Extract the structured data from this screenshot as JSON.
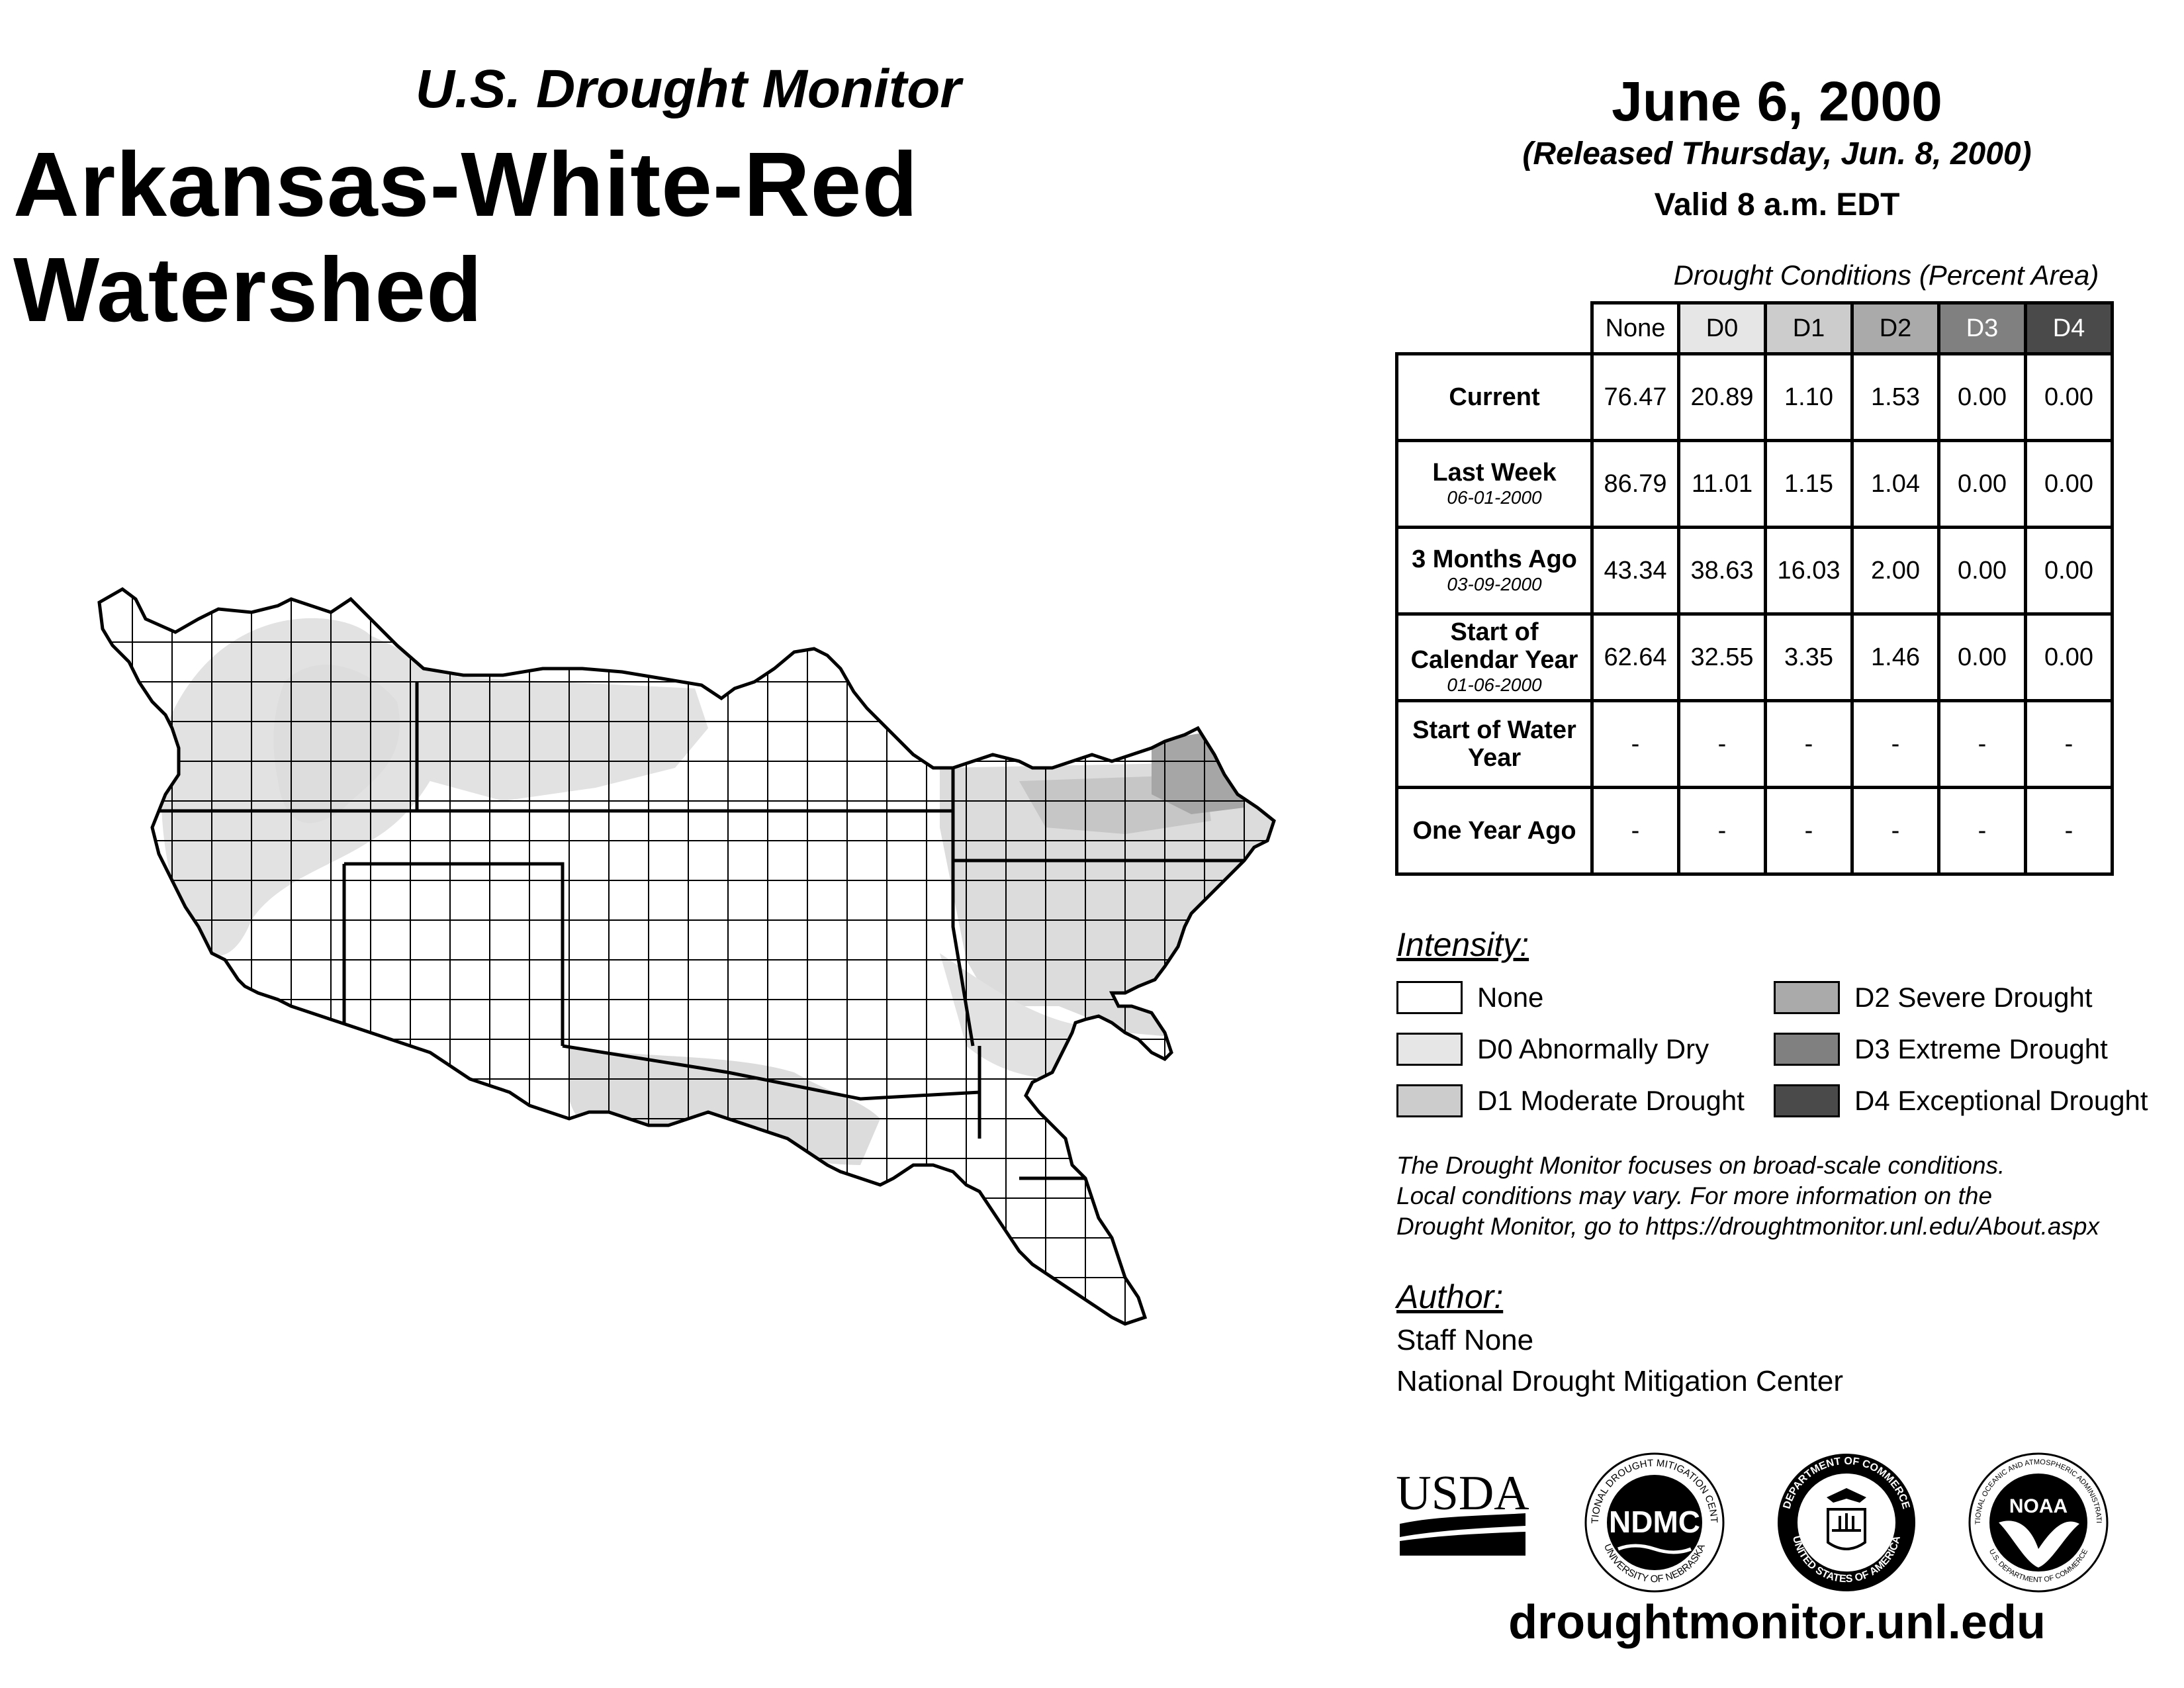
{
  "header": {
    "subtitle": "U.S. Drought Monitor",
    "title": "Arkansas-White-Red Watershed",
    "date": "June 6, 2000",
    "released": "(Released Thursday, Jun. 8, 2000)",
    "valid": "Valid 8 a.m. EDT"
  },
  "table": {
    "title": "Drought Conditions (Percent Area)",
    "columns": [
      "None",
      "D0",
      "D1",
      "D2",
      "D3",
      "D4"
    ],
    "rows": [
      {
        "label": "Current",
        "sublabel": "",
        "values": [
          "76.47",
          "20.89",
          "1.10",
          "1.53",
          "0.00",
          "0.00"
        ]
      },
      {
        "label": "Last Week",
        "sublabel": "06-01-2000",
        "values": [
          "86.79",
          "11.01",
          "1.15",
          "1.04",
          "0.00",
          "0.00"
        ]
      },
      {
        "label": "3 Months Ago",
        "sublabel": "03-09-2000",
        "values": [
          "43.34",
          "38.63",
          "16.03",
          "2.00",
          "0.00",
          "0.00"
        ]
      },
      {
        "label": "Start of Calendar Year",
        "sublabel": "01-06-2000",
        "values": [
          "62.64",
          "32.55",
          "3.35",
          "1.46",
          "0.00",
          "0.00"
        ]
      },
      {
        "label": "Start of Water Year",
        "sublabel": "",
        "values": [
          "-",
          "-",
          "-",
          "-",
          "-",
          "-"
        ]
      },
      {
        "label": "One Year Ago",
        "sublabel": "",
        "values": [
          "-",
          "-",
          "-",
          "-",
          "-",
          "-"
        ]
      }
    ]
  },
  "legend": {
    "title": "Intensity:",
    "items": [
      {
        "label": "None",
        "color": "#ffffff"
      },
      {
        "label": "D0 Abnormally Dry",
        "color": "#e6e6e6"
      },
      {
        "label": "D1 Moderate Drought",
        "color": "#cccccc"
      },
      {
        "label": "D2 Severe Drought",
        "color": "#aaaaaa"
      },
      {
        "label": "D3 Extreme Drought",
        "color": "#808080"
      },
      {
        "label": "D4 Exceptional Drought",
        "color": "#4a4a4a"
      }
    ]
  },
  "note": {
    "line1": "The Drought Monitor focuses on broad-scale conditions.",
    "line2": "Local conditions may vary. For more information on the",
    "line3": "Drought Monitor, go to https://droughtmonitor.unl.edu/About.aspx"
  },
  "author": {
    "title": "Author:",
    "name": "Staff None",
    "org": "National Drought Mitigation Center"
  },
  "logos": {
    "usda": "USDA",
    "ndmc": "NDMC",
    "ndmc_ring_top": "NATIONAL DROUGHT MITIGATION CENTER",
    "ndmc_ring_bottom": "UNIVERSITY OF NEBRASKA",
    "doc_ring_top": "DEPARTMENT OF COMMERCE",
    "doc_ring_bottom": "UNITED STATES OF AMERICA",
    "noaa": "NOAA",
    "noaa_ring_top": "NATIONAL OCEANIC AND ATMOSPHERIC ADMINISTRATION",
    "noaa_ring_bottom": "U.S. DEPARTMENT OF COMMERCE"
  },
  "footer": {
    "url": "droughtmonitor.unl.edu"
  }
}
